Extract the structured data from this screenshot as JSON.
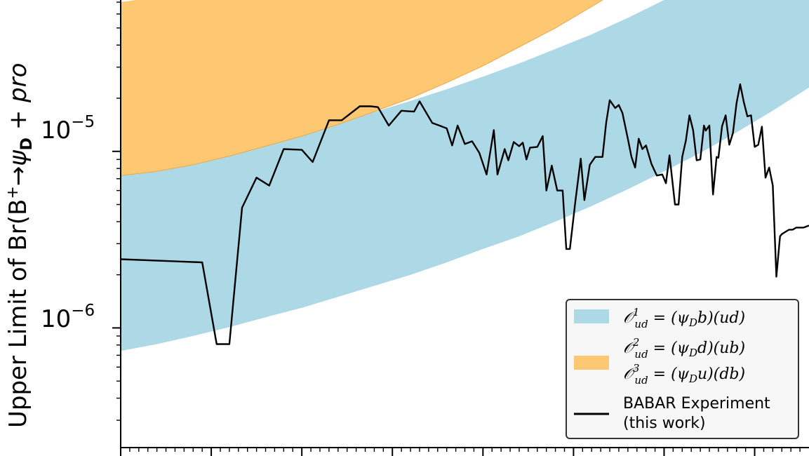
{
  "chart_data": {
    "type": "line",
    "ylabel": {
      "prefix": "Upper Limit of Br(B",
      "sup": "+",
      "arrow": "→ψ",
      "sub": "D",
      "suffix": " + pro"
    },
    "y_scale": "log",
    "ylim": [
      2.1e-07,
      7.2e-05
    ],
    "xlim": [
      0.5,
      4.3
    ],
    "y_ticks": [
      {
        "value": 1e-05,
        "base": "10",
        "exp": "−5"
      },
      {
        "value": 1e-06,
        "base": "10",
        "exp": "−6"
      }
    ],
    "colors": {
      "line": "#000000",
      "band_blue": "#add8e6",
      "band_orange": "#fdc871",
      "legend_edge": "#333333",
      "legend_face": "#f7f7f7"
    },
    "bands": [
      {
        "name": "O1_ud",
        "color": "#add8e6",
        "x": [
          0.5,
          0.7,
          0.9,
          1.1,
          1.3,
          1.5,
          1.7,
          1.9,
          2.1,
          2.3,
          2.5,
          2.7,
          2.9,
          3.1,
          3.3,
          3.5,
          3.7,
          3.9,
          4.1,
          4.3
        ],
        "lower": [
          7.4e-07,
          8.1e-07,
          9e-07,
          1.01e-06,
          1.15e-06,
          1.3e-06,
          1.5e-06,
          1.73e-06,
          2e-06,
          2.35e-06,
          2.8e-06,
          3.3e-06,
          4e-06,
          4.9e-06,
          6.1e-06,
          7.7e-06,
          9.8e-06,
          1.28e-05,
          1.7e-05,
          2.3e-05
        ],
        "upper": [
          7.4e-06,
          8.1e-06,
          8.9e-06,
          9.9e-06,
          1.12e-05,
          1.27e-05,
          1.45e-05,
          1.67e-05,
          1.93e-05,
          2.25e-05,
          2.65e-05,
          3.15e-05,
          3.8e-05,
          4.6e-05,
          5.7e-05,
          7.2e-05,
          9.2e-05,
          0.00012,
          0.00016,
          0.00022
        ]
      },
      {
        "name": "O2_ud_O3_ud",
        "color": "#fdc871",
        "x": [
          0.5,
          0.7,
          0.9,
          1.1,
          1.3,
          1.5,
          1.7,
          1.9,
          2.1,
          2.3,
          2.5,
          2.7,
          2.9,
          3.1,
          3.3,
          3.5,
          3.7,
          3.9,
          4.1,
          4.3
        ],
        "lower": [
          7.3e-06,
          7.7e-06,
          8.4e-06,
          9.4e-06,
          1.07e-05,
          1.22e-05,
          1.42e-05,
          1.68e-05,
          2e-05,
          2.45e-05,
          3.05e-05,
          3.9e-05,
          5e-05,
          6.6e-05,
          8.8e-05,
          0.00012,
          0.00016,
          0.00022,
          0.0003,
          0.00042
        ],
        "upper": [
          7e-05,
          7.5e-05,
          8.2e-05,
          9.2e-05,
          0.000105,
          0.00012,
          0.00014,
          0.000165,
          0.0002,
          0.00024,
          0.0003,
          0.00038,
          0.00049,
          0.00065,
          0.00087,
          0.0012,
          0.0016,
          0.0022,
          0.003,
          0.0042
        ]
      }
    ],
    "series": [
      {
        "name": "BABAR Experiment (this work)",
        "x": [
          0.5,
          0.95,
          1.03,
          1.07,
          1.1,
          1.17,
          1.25,
          1.32,
          1.4,
          1.5,
          1.56,
          1.65,
          1.72,
          1.82,
          1.88,
          1.92,
          1.98,
          2.05,
          2.08,
          2.12,
          2.15,
          2.22,
          2.26,
          2.3,
          2.33,
          2.36,
          2.4,
          2.44,
          2.48,
          2.52,
          2.56,
          2.58,
          2.62,
          2.64,
          2.67,
          2.7,
          2.72,
          2.74,
          2.76,
          2.8,
          2.83,
          2.85,
          2.88,
          2.91,
          2.94,
          2.96,
          2.98,
          3.01,
          3.04,
          3.06,
          3.09,
          3.12,
          3.14,
          3.16,
          3.18,
          3.2,
          3.23,
          3.25,
          3.27,
          3.3,
          3.32,
          3.34,
          3.36,
          3.38,
          3.4,
          3.43,
          3.46,
          3.49,
          3.51,
          3.53,
          3.56,
          3.58,
          3.6,
          3.62,
          3.64,
          3.66,
          3.68,
          3.7,
          3.72,
          3.73,
          3.75,
          3.77,
          3.79,
          3.8,
          3.82,
          3.84,
          3.86,
          3.88,
          3.9,
          3.92,
          3.94,
          3.96,
          3.98,
          4.0,
          4.02,
          4.04,
          4.06,
          4.08,
          4.1,
          4.12,
          4.14,
          4.15,
          4.17,
          4.19,
          4.21,
          4.23,
          4.25,
          4.27,
          4.3
        ],
        "y": [
          2.45e-06,
          2.35e-06,
          8.1e-07,
          8.1e-07,
          8.1e-07,
          4.8e-06,
          7.1e-06,
          6.4e-06,
          1.03e-05,
          1.02e-05,
          8.7e-06,
          1.5e-05,
          1.5e-05,
          1.8e-05,
          1.8e-05,
          1.78e-05,
          1.4e-05,
          1.7e-05,
          1.69e-05,
          1.68e-05,
          1.92e-05,
          1.45e-05,
          1.4e-05,
          1.35e-05,
          1.08e-05,
          1.4e-05,
          1.1e-05,
          1.14e-05,
          9.8e-06,
          7.4e-06,
          1.32e-05,
          7.4e-06,
          1.03e-05,
          8.9e-06,
          1.13e-05,
          1.07e-05,
          1.12e-05,
          9e-06,
          1.05e-05,
          1.06e-05,
          1.22e-05,
          6e-06,
          8.3e-06,
          6e-06,
          6e-06,
          2.8e-06,
          2.8e-06,
          5.2e-06,
          9.1e-06,
          5.3e-06,
          8.4e-06,
          9.3e-06,
          9.3e-06,
          9.3e-06,
          1.45e-05,
          1.95e-05,
          1.76e-05,
          1.83e-05,
          1.65e-05,
          1.18e-05,
          9.3e-06,
          8.1e-06,
          1.18e-05,
          1.03e-05,
          1.08e-05,
          8.5e-06,
          7.3e-06,
          7.4e-06,
          6.6e-06,
          9.5e-06,
          5e-06,
          5e-06,
          9.3e-06,
          1.15e-05,
          1.6e-05,
          1.32e-05,
          8.9e-06,
          9e-06,
          1.4e-05,
          1.31e-05,
          1.4e-05,
          5.7e-06,
          9.3e-06,
          9.2e-06,
          1.39e-05,
          1.6e-05,
          1.09e-05,
          1.27e-05,
          1.87e-05,
          2.4e-05,
          1.9e-05,
          1.58e-05,
          1.6e-05,
          1.06e-05,
          1.09e-05,
          1.38e-05,
          7.1e-06,
          8.1e-06,
          6.4e-06,
          1.95e-06,
          3.3e-06,
          3.4e-06,
          3.5e-06,
          3.6e-06,
          3.6e-06,
          3.7e-06,
          3.7e-06,
          3.7e-06,
          3.8e-06
        ]
      }
    ],
    "legend": {
      "location": "lower-right",
      "entries": [
        {
          "sym": "𝒪",
          "sup": "1",
          "sub": "ud",
          "rhs": " = (ψ",
          "rhs_sub": "D",
          "rhs_tail": "b)(ud)"
        },
        {
          "sym": "𝒪",
          "sup": "2",
          "sub": "ud",
          "rhs": " = (ψ",
          "rhs_sub": "D",
          "rhs_tail": "d)(ub)"
        },
        {
          "sym": "𝒪",
          "sup": "3",
          "sub": "ud",
          "rhs": " = (ψ",
          "rhs_sub": "D",
          "rhs_tail": "u)(db)"
        },
        {
          "line1": "BABAR Experiment",
          "line2": "(this work)"
        }
      ]
    },
    "grid": false
  }
}
